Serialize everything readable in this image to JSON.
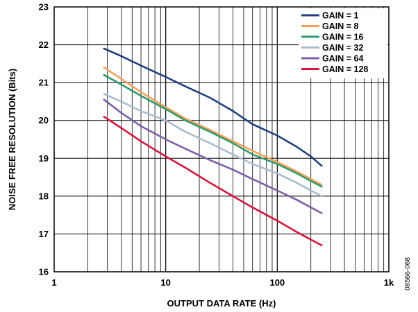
{
  "chart_data": {
    "type": "line",
    "xlabel": "OUTPUT DATA RATE (Hz)",
    "ylabel": "NOISE FREE RESOLUTION (Bits)",
    "xscale": "log",
    "xlim": [
      1,
      1000
    ],
    "ylim": [
      16,
      23
    ],
    "x_ticks": [
      {
        "value": 1,
        "label": "1"
      },
      {
        "value": 10,
        "label": "10"
      },
      {
        "value": 100,
        "label": "100"
      },
      {
        "value": 1000,
        "label": "1k"
      }
    ],
    "y_ticks": [
      {
        "value": 16,
        "label": "16"
      },
      {
        "value": 17,
        "label": "17"
      },
      {
        "value": 18,
        "label": "18"
      },
      {
        "value": 19,
        "label": "19"
      },
      {
        "value": 20,
        "label": "20"
      },
      {
        "value": 21,
        "label": "21"
      },
      {
        "value": 22,
        "label": "22"
      },
      {
        "value": 23,
        "label": "23"
      }
    ],
    "grid": true,
    "legend_position": "top-right",
    "x": [
      2.8,
      4,
      6,
      10,
      15,
      25,
      40,
      60,
      100,
      150,
      200,
      250
    ],
    "series": [
      {
        "name": "GAIN = 1",
        "color": "#1f3f7f",
        "values": [
          21.9,
          21.7,
          21.45,
          21.15,
          20.9,
          20.6,
          20.25,
          19.9,
          19.6,
          19.3,
          19.05,
          18.8
        ]
      },
      {
        "name": "GAIN = 8",
        "color": "#f7a05a",
        "values": [
          21.4,
          21.1,
          20.75,
          20.35,
          20.05,
          19.75,
          19.45,
          19.2,
          18.9,
          18.65,
          18.45,
          18.3
        ]
      },
      {
        "name": "GAIN = 16",
        "color": "#2e9a6b",
        "values": [
          21.2,
          20.95,
          20.65,
          20.3,
          20.0,
          19.7,
          19.4,
          19.1,
          18.85,
          18.6,
          18.4,
          18.25
        ]
      },
      {
        "name": "GAIN = 32",
        "color": "#a8bcd0",
        "values": [
          20.7,
          20.5,
          20.25,
          20.0,
          19.7,
          19.4,
          19.1,
          18.85,
          18.6,
          18.35,
          18.15,
          18.0
        ]
      },
      {
        "name": "GAIN = 64",
        "color": "#7b5fa8",
        "values": [
          20.55,
          20.2,
          19.85,
          19.5,
          19.25,
          18.95,
          18.7,
          18.45,
          18.15,
          17.9,
          17.7,
          17.55
        ]
      },
      {
        "name": "GAIN = 128",
        "color": "#d6163c",
        "values": [
          20.1,
          19.8,
          19.45,
          19.05,
          18.75,
          18.35,
          18.0,
          17.7,
          17.35,
          17.05,
          16.85,
          16.7
        ]
      }
    ]
  },
  "figure_id": "08566-068"
}
